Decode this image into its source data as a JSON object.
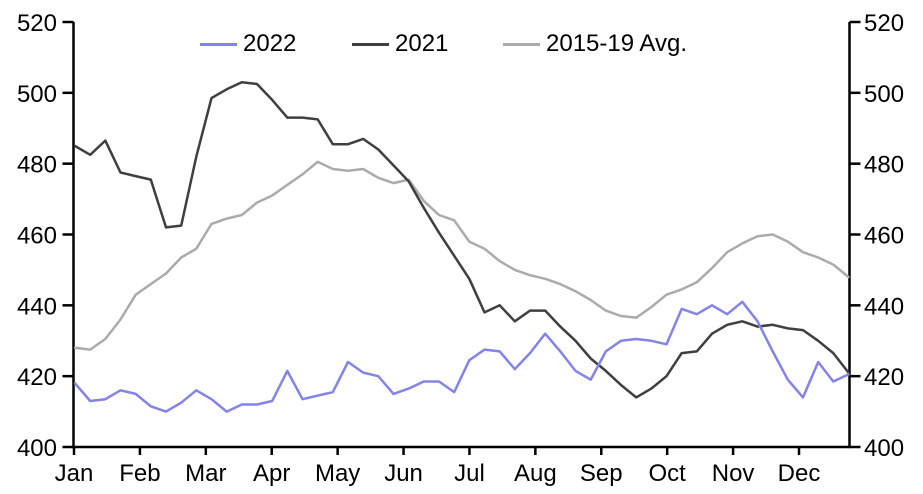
{
  "chart_data": {
    "type": "line",
    "frequency": "weekly",
    "title": "",
    "x_tick_labels": [
      "Jan",
      "Feb",
      "Mar",
      "Apr",
      "May",
      "Jun",
      "Jul",
      "Aug",
      "Sep",
      "Oct",
      "Nov",
      "Dec"
    ],
    "y_axis": {
      "min": 400,
      "max": 520,
      "tick_step": 20,
      "ticks": [
        400,
        420,
        440,
        460,
        480,
        500,
        520
      ],
      "sides": [
        "left",
        "right"
      ]
    },
    "grid": false,
    "legend_position": "top",
    "axis_color": "#000000",
    "series": [
      {
        "name": "2022",
        "color": "#8383EA",
        "values": [
          418,
          413,
          413.5,
          416,
          415,
          411.5,
          410,
          412.5,
          416,
          413.5,
          410,
          412,
          412,
          413,
          421.5,
          413.5,
          414.5,
          415.5,
          424,
          421,
          420,
          415,
          416.5,
          418.5,
          418.5,
          415.5,
          424.5,
          427.5,
          427,
          422,
          426.5,
          432,
          427,
          421.5,
          419,
          427,
          430,
          430.5,
          430,
          429,
          439,
          437.5,
          440,
          437.5,
          441,
          435.5,
          427,
          419,
          414,
          424,
          418.5,
          420.5
        ]
      },
      {
        "name": "2021",
        "color": "#3F3F3F",
        "values": [
          485,
          482.5,
          486.5,
          477.5,
          476.5,
          475.5,
          462,
          462.5,
          482,
          498.5,
          501,
          503,
          502.5,
          498,
          493,
          493,
          492.5,
          485.5,
          485.5,
          487,
          484,
          479.5,
          475,
          467.5,
          460.5,
          454,
          447.5,
          438,
          440,
          435.5,
          438.5,
          438.5,
          434,
          430,
          425,
          421.5,
          417.5,
          414,
          416.5,
          420,
          426.5,
          427,
          432,
          434.5,
          435.5,
          434,
          434.5,
          433.5,
          433,
          430,
          426.5,
          421
        ]
      },
      {
        "name": "2015-19 Avg.",
        "color": "#ABABAB",
        "values": [
          428,
          427.5,
          430.5,
          436,
          443,
          446,
          449,
          453.5,
          456,
          463,
          464.5,
          465.5,
          469,
          471,
          474,
          477,
          480.5,
          478.5,
          478,
          478.5,
          476,
          474.5,
          475.5,
          469.5,
          465.5,
          464,
          458,
          456,
          452.5,
          450,
          448.5,
          447.5,
          446,
          444,
          441.5,
          438.5,
          437,
          436.5,
          439.5,
          443,
          444.5,
          446.5,
          450.5,
          455,
          457.5,
          459.5,
          460,
          458,
          455,
          453.5,
          451.5,
          448
        ]
      }
    ]
  }
}
